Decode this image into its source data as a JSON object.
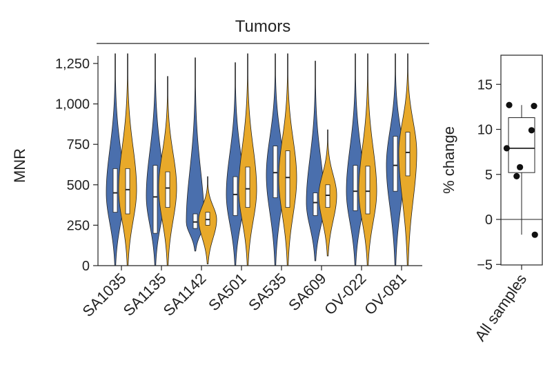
{
  "chart_data": [
    {
      "type": "violin",
      "group_label": "Tumors",
      "ylabel": "MNR",
      "ylim": [
        0,
        1300
      ],
      "yticks": [
        0,
        250,
        500,
        750,
        1000,
        1250
      ],
      "ytick_labels": [
        "0",
        "250",
        "500",
        "750",
        "1,000",
        "1,250"
      ],
      "categories": [
        "SA1035",
        "SA1135",
        "SA1142",
        "SA501",
        "SA535",
        "SA609",
        "OV-022",
        "OV-081"
      ],
      "colors": {
        "series_a": "#4a6fad",
        "series_b": "#e8a92a",
        "outline": "#222222"
      },
      "violins": [
        [
          {
            "min": 0,
            "q1": 330,
            "median": 450,
            "q3": 600,
            "max": 1310,
            "peak": 450
          },
          {
            "min": 0,
            "q1": 320,
            "median": 470,
            "q3": 600,
            "max": 1310,
            "peak": 470
          }
        ],
        [
          {
            "min": 0,
            "q1": 200,
            "median": 425,
            "q3": 620,
            "max": 1310,
            "peak": 430
          },
          {
            "min": 0,
            "q1": 360,
            "median": 480,
            "q3": 580,
            "max": 1170,
            "peak": 480
          }
        ],
        [
          {
            "min": 90,
            "q1": 230,
            "median": 270,
            "q3": 320,
            "max": 1285,
            "peak": 270
          },
          {
            "min": 10,
            "q1": 250,
            "median": 285,
            "q3": 330,
            "max": 550,
            "peak": 285
          }
        ],
        [
          {
            "min": 0,
            "q1": 310,
            "median": 440,
            "q3": 550,
            "max": 1255,
            "peak": 440
          },
          {
            "min": 0,
            "q1": 360,
            "median": 475,
            "q3": 610,
            "max": 1310,
            "peak": 470
          }
        ],
        [
          {
            "min": 0,
            "q1": 420,
            "median": 575,
            "q3": 740,
            "max": 1310,
            "peak": 560
          },
          {
            "min": 0,
            "q1": 360,
            "median": 545,
            "q3": 710,
            "max": 1310,
            "peak": 540
          }
        ],
        [
          {
            "min": 30,
            "q1": 310,
            "median": 390,
            "q3": 450,
            "max": 1265,
            "peak": 390
          },
          {
            "min": 60,
            "q1": 360,
            "median": 435,
            "q3": 500,
            "max": 840,
            "peak": 435
          }
        ],
        [
          {
            "min": 0,
            "q1": 340,
            "median": 460,
            "q3": 620,
            "max": 1310,
            "peak": 460
          },
          {
            "min": 0,
            "q1": 320,
            "median": 460,
            "q3": 615,
            "max": 1310,
            "peak": 460
          }
        ],
        [
          {
            "min": 0,
            "q1": 460,
            "median": 620,
            "q3": 800,
            "max": 1310,
            "peak": 620
          },
          {
            "min": 0,
            "q1": 555,
            "median": 700,
            "q3": 825,
            "max": 1310,
            "peak": 700
          }
        ]
      ]
    },
    {
      "type": "box",
      "ylabel": "% change",
      "ylim": [
        -5.5,
        18
      ],
      "yticks": [
        -5,
        0,
        5,
        10,
        15
      ],
      "ytick_labels": [
        "−5",
        "0",
        "5",
        "10",
        "15"
      ],
      "categories": [
        "All samples"
      ],
      "reference_line": 0,
      "box": {
        "min": -1.7,
        "q1": 5.2,
        "median": 7.9,
        "q3": 11.3,
        "max": 12.7
      },
      "points": [
        {
          "x": -0.15,
          "y": 12.7
        },
        {
          "x": 0.15,
          "y": 12.6
        },
        {
          "x": 0.12,
          "y": 9.9
        },
        {
          "x": -0.18,
          "y": 7.9
        },
        {
          "x": -0.02,
          "y": 5.8
        },
        {
          "x": -0.06,
          "y": 4.8
        },
        {
          "x": 0.16,
          "y": -1.7
        }
      ]
    }
  ]
}
